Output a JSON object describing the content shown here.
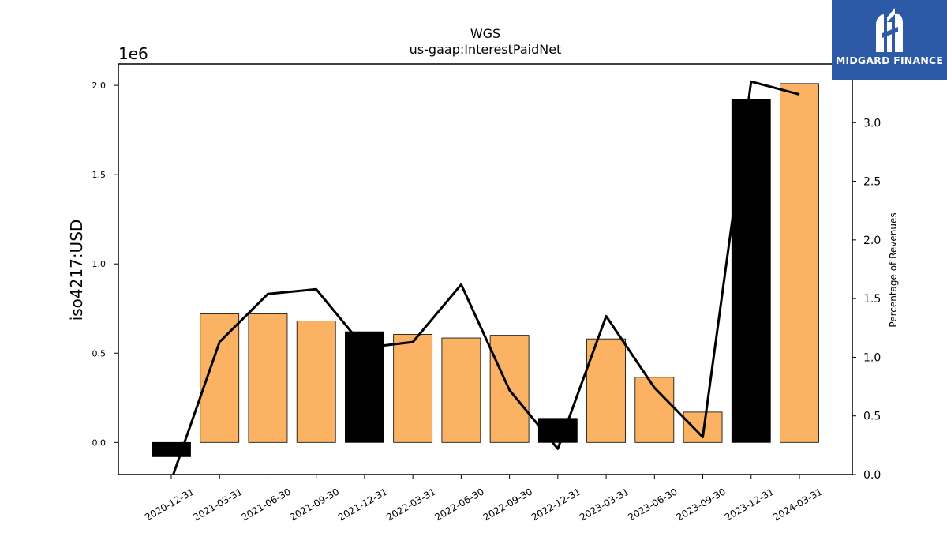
{
  "chart_data": {
    "type": "bar",
    "title": "WGS",
    "subtitle": "us-gaap:InterestPaidNet",
    "ylabel": "iso4217:USD",
    "y2label": "Percentage of Revenues",
    "y_offset_label": "1e6",
    "categories": [
      "2020-12-31",
      "2021-03-31",
      "2021-06-30",
      "2021-09-30",
      "2021-12-31",
      "2022-03-31",
      "2022-06-30",
      "2022-09-30",
      "2022-12-31",
      "2023-03-31",
      "2023-06-30",
      "2023-09-30",
      "2023-12-31",
      "2024-03-31"
    ],
    "values": [
      -0.08,
      0.72,
      0.72,
      0.68,
      0.62,
      0.605,
      0.585,
      0.6,
      0.135,
      0.58,
      0.365,
      0.17,
      1.92,
      2.01
    ],
    "bar_colors": [
      "#000000",
      "#fbb262",
      "#fbb262",
      "#fbb262",
      "#000000",
      "#fbb262",
      "#fbb262",
      "#fbb262",
      "#000000",
      "#fbb262",
      "#fbb262",
      "#fbb262",
      "#000000",
      "#fbb262"
    ],
    "line_values": [
      -0.05,
      1.13,
      1.54,
      1.58,
      1.08,
      1.13,
      1.62,
      0.72,
      0.22,
      1.35,
      0.74,
      0.32,
      3.35,
      3.24
    ],
    "ylim": [
      -0.18,
      2.12
    ],
    "y_ticks": [
      0.0,
      0.5,
      1.0,
      1.5,
      2.0
    ],
    "y_tick_labels": [
      "0.0",
      "0.5",
      "1.0",
      "1.5",
      "2.0"
    ],
    "y2lim": [
      0.0,
      3.5
    ],
    "y2_ticks": [
      0.0,
      0.5,
      1.0,
      1.5,
      2.0,
      2.5,
      3.0
    ],
    "y2_tick_labels": [
      "0.0",
      "0.5",
      "1.0",
      "1.5",
      "2.0",
      "2.5",
      "3.0"
    ],
    "grid": false,
    "colors": {
      "bar": "#fbb262",
      "highlight_bar": "#000000",
      "line": "#000000"
    }
  },
  "logo": {
    "text": "MIDGARD FINANCE",
    "color": "#2c5aa6"
  }
}
